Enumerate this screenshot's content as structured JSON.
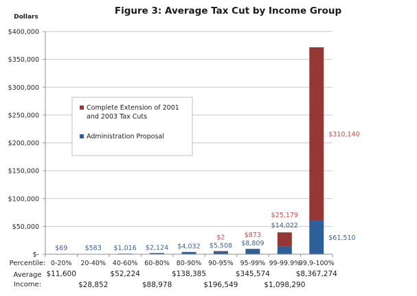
{
  "chart_data": {
    "type": "bar",
    "stacked": true,
    "title": "Figure 3: Average Tax Cut by Income Group",
    "ylabel": "Dollars",
    "xlabel": "",
    "ylim": [
      0,
      400000
    ],
    "yticks": [
      0,
      50000,
      100000,
      150000,
      200000,
      250000,
      300000,
      350000,
      400000
    ],
    "ytick_labels": [
      "$-",
      "$50,000",
      "$100,000",
      "$150,000",
      "$200,000",
      "$250,000",
      "$300,000",
      "$350,000",
      "$400,000"
    ],
    "grid": true,
    "row_labels": {
      "percentile": "Percentile:",
      "income_line1": "Average",
      "income_line2": "Income:"
    },
    "categories": [
      "0-20%",
      "20-40%",
      "40-60%",
      "60-80%",
      "80-90%",
      "90-95%",
      "95-99%",
      "99-99.9%",
      "99.9-100%"
    ],
    "average_income": [
      "$11,600",
      "$28,852",
      "$52,224",
      "$88,978",
      "$138,385",
      "$196,549",
      "$345,574",
      "$1,098,290",
      "$8,367,274"
    ],
    "series": [
      {
        "name": "Administration Proposal",
        "color": "#2f5f98",
        "label_color": "#3d5f8f",
        "values": [
          69,
          583,
          1016,
          2124,
          4032,
          5508,
          8809,
          14022,
          61510
        ],
        "labels": [
          "$69",
          "$583",
          "$1,016",
          "$2,124",
          "$4,032",
          "$5,508",
          "$8,809",
          "$14,022",
          "$61,510"
        ]
      },
      {
        "name": "Complete Extension of 2001 and 2003 Tax Cuts",
        "color": "#953735",
        "label_color": "#c0504d",
        "values": [
          0,
          0,
          0,
          0,
          0,
          2,
          873,
          25179,
          310140
        ],
        "labels": [
          "",
          "",
          "",
          "",
          "",
          "$2",
          "$873",
          "$25,179",
          "$310,140"
        ]
      }
    ],
    "legend": {
      "placement": "center-left",
      "entries": [
        {
          "line1": "Complete Extension of 2001",
          "line2": "and 2003 Tax Cuts",
          "color": "#953735"
        },
        {
          "line1": "Administration Proposal",
          "line2": "",
          "color": "#2f5f98"
        }
      ]
    }
  }
}
